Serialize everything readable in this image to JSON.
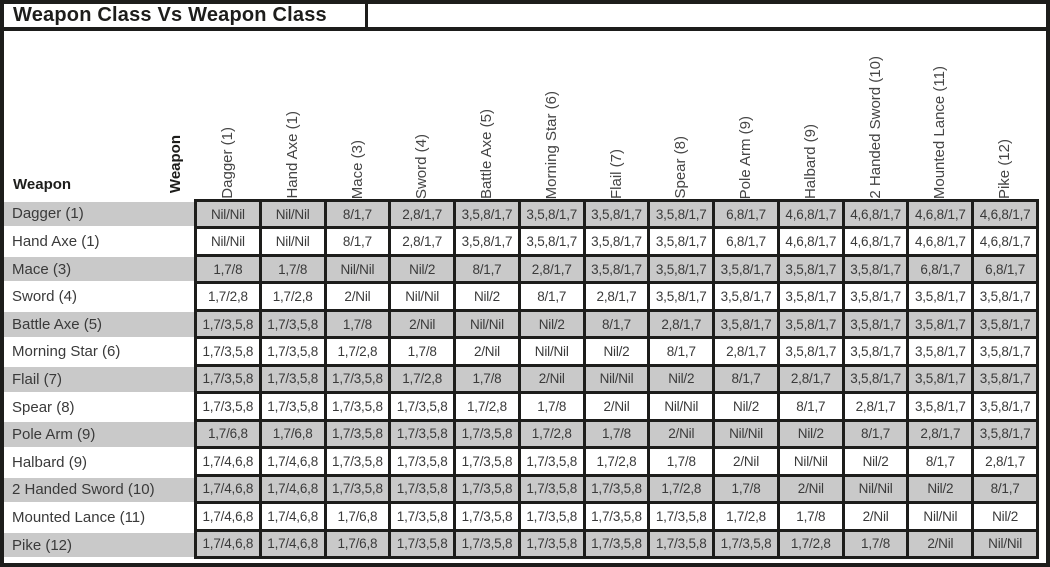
{
  "title": "Weapon Class Vs Weapon Class",
  "corner": {
    "row_axis_label": "Weapon",
    "col_axis_label": "Weapon"
  },
  "columns": [
    "Dagger (1)",
    "Hand Axe (1)",
    "Mace (3)",
    "Sword (4)",
    "Battle Axe (5)",
    "Morning Star (6)",
    "Flail (7)",
    "Spear (8)",
    "Pole Arm (9)",
    "Halbard (9)",
    "2 Handed Sword (10)",
    "Mounted Lance (11)",
    "Pike (12)"
  ],
  "rows": [
    {
      "label": "Dagger (1)",
      "cells": [
        "Nil/Nil",
        "Nil/Nil",
        "8/1,7",
        "2,8/1,7",
        "3,5,8/1,7",
        "3,5,8/1,7",
        "3,5,8/1,7",
        "3,5,8/1,7",
        "6,8/1,7",
        "4,6,8/1,7",
        "4,6,8/1,7",
        "4,6,8/1,7",
        "4,6,8/1,7"
      ]
    },
    {
      "label": "Hand Axe (1)",
      "cells": [
        "Nil/Nil",
        "Nil/Nil",
        "8/1,7",
        "2,8/1,7",
        "3,5,8/1,7",
        "3,5,8/1,7",
        "3,5,8/1,7",
        "3,5,8/1,7",
        "6,8/1,7",
        "4,6,8/1,7",
        "4,6,8/1,7",
        "4,6,8/1,7",
        "4,6,8/1,7"
      ]
    },
    {
      "label": "Mace (3)",
      "cells": [
        "1,7/8",
        "1,7/8",
        "Nil/Nil",
        "Nil/2",
        "8/1,7",
        "2,8/1,7",
        "3,5,8/1,7",
        "3,5,8/1,7",
        "3,5,8/1,7",
        "3,5,8/1,7",
        "3,5,8/1,7",
        "6,8/1,7",
        "6,8/1,7"
      ]
    },
    {
      "label": "Sword (4)",
      "cells": [
        "1,7/2,8",
        "1,7/2,8",
        "2/Nil",
        "Nil/Nil",
        "Nil/2",
        "8/1,7",
        "2,8/1,7",
        "3,5,8/1,7",
        "3,5,8/1,7",
        "3,5,8/1,7",
        "3,5,8/1,7",
        "3,5,8/1,7",
        "3,5,8/1,7"
      ]
    },
    {
      "label": "Battle Axe (5)",
      "cells": [
        "1,7/3,5,8",
        "1,7/3,5,8",
        "1,7/8",
        "2/Nil",
        "Nil/Nil",
        "Nil/2",
        "8/1,7",
        "2,8/1,7",
        "3,5,8/1,7",
        "3,5,8/1,7",
        "3,5,8/1,7",
        "3,5,8/1,7",
        "3,5,8/1,7"
      ]
    },
    {
      "label": "Morning Star (6)",
      "cells": [
        "1,7/3,5,8",
        "1,7/3,5,8",
        "1,7/2,8",
        "1,7/8",
        "2/Nil",
        "Nil/Nil",
        "Nil/2",
        "8/1,7",
        "2,8/1,7",
        "3,5,8/1,7",
        "3,5,8/1,7",
        "3,5,8/1,7",
        "3,5,8/1,7"
      ]
    },
    {
      "label": "Flail (7)",
      "cells": [
        "1,7/3,5,8",
        "1,7/3,5,8",
        "1,7/3,5,8",
        "1,7/2,8",
        "1,7/8",
        "2/Nil",
        "Nil/Nil",
        "Nil/2",
        "8/1,7",
        "2,8/1,7",
        "3,5,8/1,7",
        "3,5,8/1,7",
        "3,5,8/1,7"
      ]
    },
    {
      "label": "Spear (8)",
      "cells": [
        "1,7/3,5,8",
        "1,7/3,5,8",
        "1,7/3,5,8",
        "1,7/3,5,8",
        "1,7/2,8",
        "1,7/8",
        "2/Nil",
        "Nil/Nil",
        "Nil/2",
        "8/1,7",
        "2,8/1,7",
        "3,5,8/1,7",
        "3,5,8/1,7"
      ]
    },
    {
      "label": "Pole Arm (9)",
      "cells": [
        "1,7/6,8",
        "1,7/6,8",
        "1,7/3,5,8",
        "1,7/3,5,8",
        "1,7/3,5,8",
        "1,7/2,8",
        "1,7/8",
        "2/Nil",
        "Nil/Nil",
        "Nil/2",
        "8/1,7",
        "2,8/1,7",
        "3,5,8/1,7"
      ]
    },
    {
      "label": "Halbard (9)",
      "cells": [
        "1,7/4,6,8",
        "1,7/4,6,8",
        "1,7/3,5,8",
        "1,7/3,5,8",
        "1,7/3,5,8",
        "1,7/3,5,8",
        "1,7/2,8",
        "1,7/8",
        "2/Nil",
        "Nil/Nil",
        "Nil/2",
        "8/1,7",
        "2,8/1,7"
      ]
    },
    {
      "label": "2 Handed Sword (10)",
      "cells": [
        "1,7/4,6,8",
        "1,7/4,6,8",
        "1,7/3,5,8",
        "1,7/3,5,8",
        "1,7/3,5,8",
        "1,7/3,5,8",
        "1,7/3,5,8",
        "1,7/2,8",
        "1,7/8",
        "2/Nil",
        "Nil/Nil",
        "Nil/2",
        "8/1,7"
      ]
    },
    {
      "label": "Mounted Lance (11)",
      "cells": [
        "1,7/4,6,8",
        "1,7/4,6,8",
        "1,7/6,8",
        "1,7/3,5,8",
        "1,7/3,5,8",
        "1,7/3,5,8",
        "1,7/3,5,8",
        "1,7/3,5,8",
        "1,7/2,8",
        "1,7/8",
        "2/Nil",
        "Nil/Nil",
        "Nil/2"
      ]
    },
    {
      "label": "Pike (12)",
      "cells": [
        "1,7/4,6,8",
        "1,7/4,6,8",
        "1,7/6,8",
        "1,7/3,5,8",
        "1,7/3,5,8",
        "1,7/3,5,8",
        "1,7/3,5,8",
        "1,7/3,5,8",
        "1,7/3,5,8",
        "1,7/2,8",
        "1,7/8",
        "2/Nil",
        "Nil/Nil"
      ]
    }
  ],
  "colors": {
    "border_black": "#1d1d1b",
    "row_shade_gray": "#c9c9c9",
    "row_plain_white": "#ffffff",
    "text_dark_gray": "#3a3a3a"
  }
}
